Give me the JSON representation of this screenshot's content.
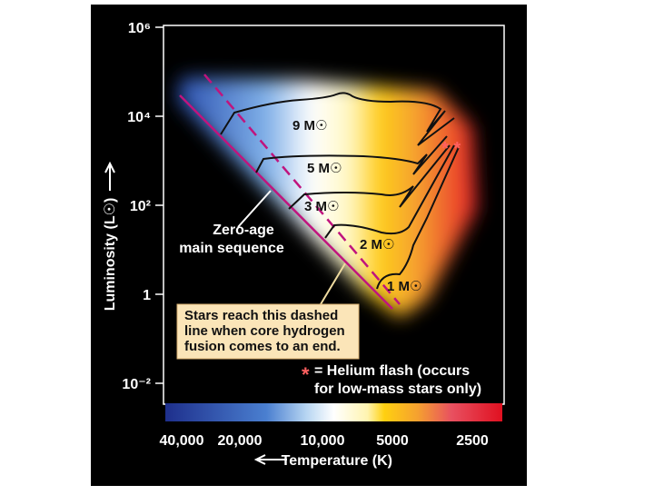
{
  "y_axis": {
    "label": "Luminosity (L☉)",
    "ticks": [
      "10⁶",
      "10⁴",
      "10²",
      "1",
      "10⁻²"
    ]
  },
  "x_axis": {
    "label": "Temperature (K)",
    "ticks": [
      "40,000",
      "20,000",
      "10,000",
      "5000",
      "2500"
    ]
  },
  "tracks": [
    "9 M☉",
    "5 M☉",
    "3 M☉",
    "2 M☉",
    "1 M☉"
  ],
  "zams_label": [
    "Zero-age",
    "main sequence"
  ],
  "note_box": [
    "Stars reach this dashed",
    "line when core hydrogen",
    "fusion comes to an end."
  ],
  "helium_flash_markers": "* *",
  "helium_flash_key": {
    "symbol": "*",
    "lines": [
      "= Helium flash (occurs",
      "for low-mass stars only)"
    ]
  }
}
